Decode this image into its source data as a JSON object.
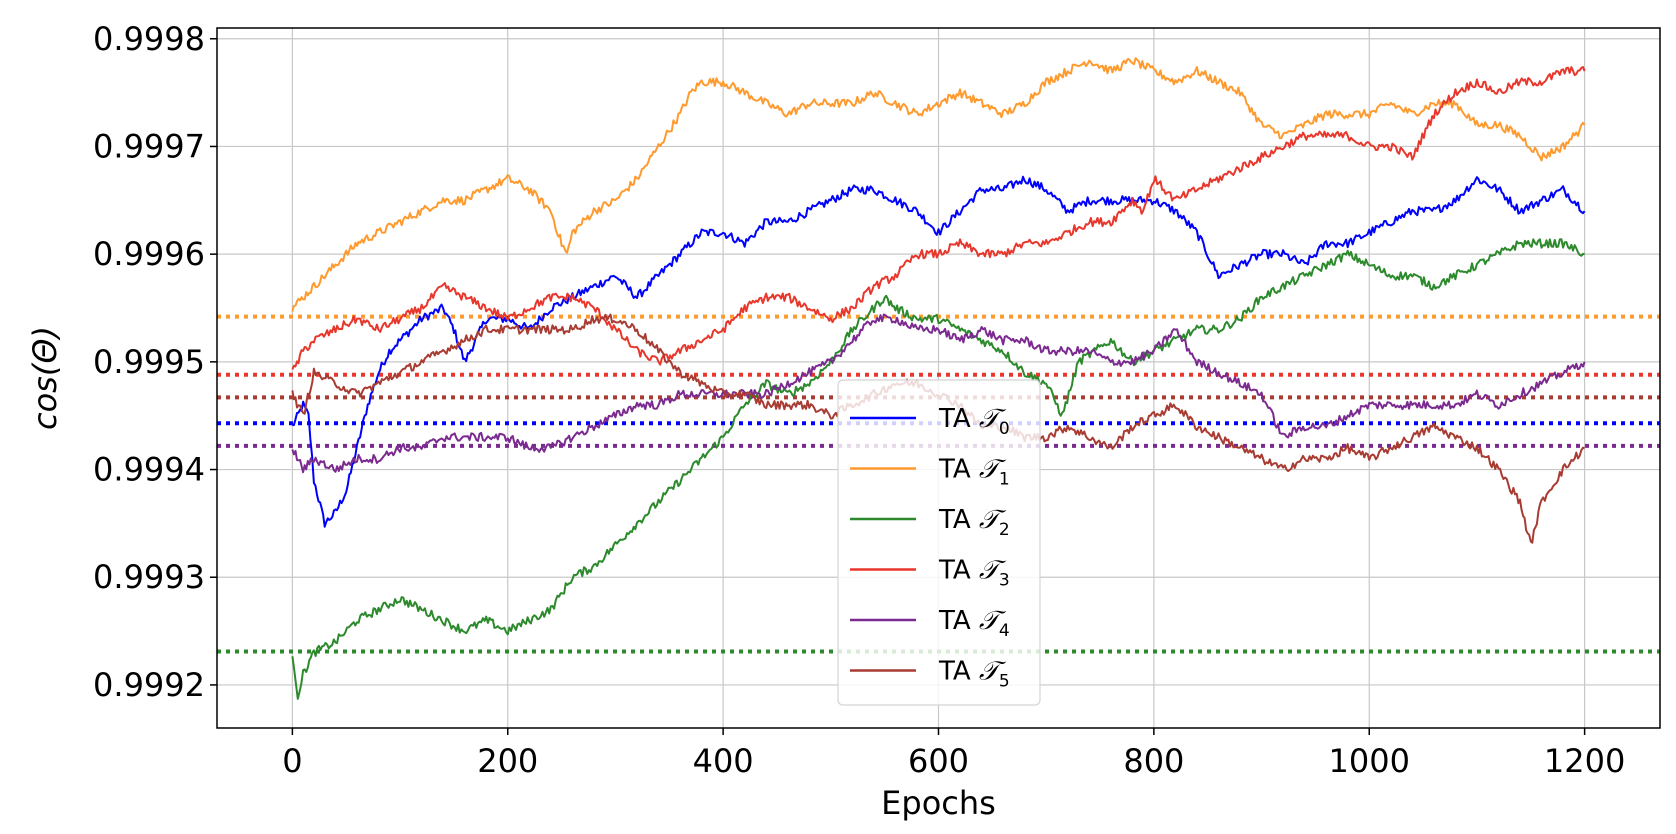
{
  "chart_data": {
    "type": "line",
    "xlabel": "Epochs",
    "ylabel": "cos(Θ)",
    "xlim": [
      -70,
      1270
    ],
    "ylim": [
      0.99916,
      0.99981
    ],
    "xticks": [
      0,
      200,
      400,
      600,
      800,
      1000,
      1200
    ],
    "yticks": [
      0.9992,
      0.9993,
      0.9994,
      0.9995,
      0.9996,
      0.9997,
      0.9998
    ],
    "ytick_labels": [
      "0.9992",
      "0.9993",
      "0.9994",
      "0.9995",
      "0.9996",
      "0.9997",
      "0.9998"
    ],
    "grid": true,
    "legend_position": "lower-center",
    "series": [
      {
        "name": "TA 𝒯0",
        "prefix": "TA",
        "symbol": "𝒯",
        "sub": "0",
        "color": "#0000ff",
        "x": [
          0,
          10,
          15,
          20,
          30,
          40,
          50,
          60,
          70,
          80,
          90,
          100,
          120,
          140,
          150,
          160,
          170,
          180,
          200,
          220,
          240,
          260,
          280,
          300,
          320,
          340,
          360,
          380,
          400,
          420,
          440,
          460,
          480,
          500,
          520,
          540,
          560,
          580,
          600,
          620,
          640,
          660,
          680,
          700,
          720,
          740,
          760,
          780,
          800,
          820,
          840,
          860,
          880,
          900,
          920,
          940,
          960,
          980,
          1000,
          1020,
          1040,
          1060,
          1080,
          1100,
          1120,
          1140,
          1160,
          1180,
          1200
        ],
        "values": [
          0.99944,
          0.99946,
          0.99945,
          0.99939,
          0.99935,
          0.99936,
          0.99938,
          0.99942,
          0.99946,
          0.99949,
          0.99951,
          0.99952,
          0.99954,
          0.99955,
          0.99953,
          0.9995,
          0.99952,
          0.99954,
          0.99954,
          0.99953,
          0.99955,
          0.99956,
          0.99957,
          0.99958,
          0.99956,
          0.99958,
          0.9996,
          0.99962,
          0.99962,
          0.99961,
          0.99963,
          0.99963,
          0.99964,
          0.99965,
          0.99966,
          0.99966,
          0.99965,
          0.99964,
          0.99962,
          0.99964,
          0.99966,
          0.99966,
          0.99967,
          0.99966,
          0.99964,
          0.99965,
          0.99965,
          0.99965,
          0.99965,
          0.99964,
          0.99962,
          0.99958,
          0.99959,
          0.9996,
          0.9996,
          0.99959,
          0.99961,
          0.99961,
          0.99962,
          0.99963,
          0.99964,
          0.99964,
          0.99965,
          0.99967,
          0.99966,
          0.99964,
          0.99965,
          0.99966,
          0.99964
        ]
      },
      {
        "name": "TA 𝒯1",
        "prefix": "TA",
        "symbol": "𝒯",
        "sub": "1",
        "color": "#ff9a2e",
        "x": [
          0,
          10,
          20,
          30,
          40,
          50,
          60,
          80,
          100,
          120,
          140,
          160,
          180,
          200,
          220,
          240,
          250,
          255,
          260,
          270,
          280,
          300,
          320,
          340,
          360,
          370,
          380,
          400,
          420,
          440,
          460,
          480,
          500,
          520,
          540,
          560,
          580,
          600,
          620,
          640,
          660,
          680,
          700,
          720,
          740,
          760,
          780,
          800,
          820,
          840,
          860,
          880,
          900,
          920,
          940,
          960,
          980,
          1000,
          1020,
          1040,
          1060,
          1080,
          1100,
          1120,
          1140,
          1160,
          1180,
          1200
        ],
        "values": [
          0.99955,
          0.99956,
          0.99957,
          0.99958,
          0.99959,
          0.9996,
          0.99961,
          0.99962,
          0.99963,
          0.99964,
          0.99965,
          0.99965,
          0.99966,
          0.99967,
          0.99966,
          0.99964,
          0.99961,
          0.9996,
          0.99962,
          0.99963,
          0.99964,
          0.99965,
          0.99967,
          0.9997,
          0.99973,
          0.99975,
          0.99976,
          0.99976,
          0.99975,
          0.99974,
          0.99973,
          0.99974,
          0.99974,
          0.99974,
          0.99975,
          0.99974,
          0.99973,
          0.99974,
          0.99975,
          0.99974,
          0.99973,
          0.99974,
          0.99976,
          0.99977,
          0.99978,
          0.99977,
          0.99978,
          0.99977,
          0.99976,
          0.99977,
          0.99976,
          0.99975,
          0.99972,
          0.99971,
          0.99972,
          0.99973,
          0.99973,
          0.99973,
          0.99974,
          0.99973,
          0.99974,
          0.99974,
          0.99972,
          0.99972,
          0.99971,
          0.99969,
          0.9997,
          0.99972
        ]
      },
      {
        "name": "TA 𝒯2",
        "prefix": "TA",
        "symbol": "𝒯",
        "sub": "2",
        "color": "#2c8a2c",
        "x": [
          0,
          5,
          10,
          20,
          40,
          60,
          80,
          100,
          120,
          140,
          160,
          180,
          200,
          220,
          240,
          260,
          280,
          300,
          320,
          340,
          360,
          380,
          400,
          420,
          440,
          460,
          480,
          500,
          520,
          540,
          550,
          560,
          580,
          600,
          620,
          640,
          660,
          680,
          700,
          715,
          730,
          760,
          780,
          800,
          820,
          840,
          860,
          880,
          900,
          920,
          940,
          960,
          980,
          1000,
          1020,
          1040,
          1060,
          1080,
          1100,
          1120,
          1140,
          1160,
          1180,
          1200
        ],
        "values": [
          0.99923,
          0.99919,
          0.99921,
          0.99923,
          0.99924,
          0.99926,
          0.99927,
          0.99928,
          0.99927,
          0.99926,
          0.99925,
          0.99926,
          0.99925,
          0.99926,
          0.99927,
          0.9993,
          0.99931,
          0.99933,
          0.99935,
          0.99937,
          0.99939,
          0.99941,
          0.99943,
          0.99946,
          0.99948,
          0.99947,
          0.99948,
          0.9995,
          0.99953,
          0.99955,
          0.99956,
          0.99955,
          0.99954,
          0.99954,
          0.99953,
          0.99952,
          0.99951,
          0.99949,
          0.99948,
          0.99945,
          0.9995,
          0.99952,
          0.9995,
          0.99951,
          0.99952,
          0.99953,
          0.99953,
          0.99954,
          0.99956,
          0.99957,
          0.99958,
          0.99959,
          0.9996,
          0.99959,
          0.99958,
          0.99958,
          0.99957,
          0.99958,
          0.99959,
          0.9996,
          0.99961,
          0.99961,
          0.99961,
          0.9996
        ]
      },
      {
        "name": "TA 𝒯3",
        "prefix": "TA",
        "symbol": "𝒯",
        "sub": "3",
        "color": "#e8372c",
        "x": [
          0,
          10,
          20,
          40,
          60,
          80,
          100,
          120,
          140,
          160,
          180,
          200,
          220,
          240,
          260,
          280,
          300,
          320,
          340,
          360,
          380,
          400,
          420,
          440,
          460,
          480,
          500,
          520,
          540,
          560,
          580,
          600,
          620,
          640,
          660,
          680,
          700,
          720,
          740,
          760,
          780,
          790,
          800,
          820,
          840,
          860,
          880,
          900,
          920,
          940,
          960,
          980,
          1000,
          1020,
          1040,
          1060,
          1080,
          1100,
          1120,
          1140,
          1160,
          1180,
          1200
        ],
        "values": [
          0.99949,
          0.99951,
          0.99952,
          0.99953,
          0.99954,
          0.99953,
          0.99954,
          0.99955,
          0.99957,
          0.99956,
          0.99955,
          0.99954,
          0.99955,
          0.99956,
          0.99956,
          0.99955,
          0.99953,
          0.99951,
          0.9995,
          0.99951,
          0.99952,
          0.99953,
          0.99955,
          0.99956,
          0.99956,
          0.99955,
          0.99954,
          0.99955,
          0.99957,
          0.99958,
          0.9996,
          0.9996,
          0.99961,
          0.9996,
          0.9996,
          0.99961,
          0.99961,
          0.99962,
          0.99963,
          0.99963,
          0.99965,
          0.99964,
          0.99967,
          0.99965,
          0.99966,
          0.99967,
          0.99968,
          0.99969,
          0.9997,
          0.99971,
          0.99971,
          0.99971,
          0.9997,
          0.9997,
          0.99969,
          0.99973,
          0.99975,
          0.99976,
          0.99975,
          0.99976,
          0.99976,
          0.99977,
          0.99977
        ]
      },
      {
        "name": "TA 𝒯4",
        "prefix": "TA",
        "symbol": "𝒯",
        "sub": "4",
        "color": "#7b2a8f",
        "x": [
          0,
          10,
          20,
          40,
          60,
          80,
          100,
          120,
          140,
          160,
          180,
          200,
          220,
          240,
          260,
          280,
          300,
          320,
          340,
          360,
          380,
          400,
          420,
          440,
          460,
          480,
          500,
          520,
          540,
          560,
          580,
          600,
          620,
          640,
          660,
          680,
          700,
          720,
          740,
          760,
          780,
          800,
          820,
          840,
          860,
          880,
          900,
          920,
          940,
          960,
          980,
          1000,
          1020,
          1040,
          1060,
          1080,
          1100,
          1120,
          1140,
          1160,
          1180,
          1200
        ],
        "values": [
          0.99942,
          0.9994,
          0.99941,
          0.9994,
          0.99941,
          0.99941,
          0.99942,
          0.99942,
          0.99943,
          0.99943,
          0.99943,
          0.99943,
          0.99942,
          0.99942,
          0.99943,
          0.99944,
          0.99945,
          0.99946,
          0.99946,
          0.99947,
          0.99947,
          0.99947,
          0.99947,
          0.99947,
          0.99948,
          0.99949,
          0.9995,
          0.99952,
          0.99954,
          0.99954,
          0.99953,
          0.99953,
          0.99952,
          0.99953,
          0.99952,
          0.99952,
          0.99951,
          0.99951,
          0.99951,
          0.9995,
          0.9995,
          0.99951,
          0.99953,
          0.9995,
          0.99949,
          0.99948,
          0.99947,
          0.99943,
          0.99944,
          0.99944,
          0.99945,
          0.99946,
          0.99946,
          0.99946,
          0.99946,
          0.99946,
          0.99947,
          0.99946,
          0.99947,
          0.99948,
          0.99949,
          0.9995
        ]
      },
      {
        "name": "TA 𝒯5",
        "prefix": "TA",
        "symbol": "𝒯",
        "sub": "5",
        "color": "#a83b32",
        "x": [
          0,
          10,
          20,
          40,
          60,
          80,
          100,
          120,
          140,
          160,
          180,
          200,
          220,
          240,
          260,
          280,
          300,
          320,
          340,
          360,
          380,
          400,
          420,
          440,
          460,
          480,
          500,
          520,
          540,
          560,
          580,
          600,
          620,
          640,
          660,
          680,
          700,
          720,
          740,
          760,
          780,
          800,
          820,
          840,
          860,
          880,
          900,
          920,
          940,
          960,
          980,
          1000,
          1020,
          1040,
          1060,
          1080,
          1100,
          1120,
          1140,
          1150,
          1160,
          1180,
          1200
        ],
        "values": [
          0.99947,
          0.99945,
          0.99949,
          0.99948,
          0.99947,
          0.99948,
          0.99949,
          0.9995,
          0.99951,
          0.99952,
          0.99953,
          0.99953,
          0.99953,
          0.99953,
          0.99953,
          0.99954,
          0.99954,
          0.99953,
          0.99951,
          0.99949,
          0.99948,
          0.99947,
          0.99947,
          0.99946,
          0.99946,
          0.99946,
          0.99945,
          0.99946,
          0.99947,
          0.99948,
          0.99948,
          0.99947,
          0.99946,
          0.99944,
          0.99944,
          0.99943,
          0.99943,
          0.99944,
          0.99943,
          0.99942,
          0.99944,
          0.99945,
          0.99946,
          0.99944,
          0.99943,
          0.99942,
          0.99941,
          0.9994,
          0.99941,
          0.99941,
          0.99942,
          0.99941,
          0.99942,
          0.99943,
          0.99944,
          0.99943,
          0.99942,
          0.9994,
          0.99937,
          0.99933,
          0.99937,
          0.9994,
          0.99942
        ]
      }
    ],
    "reference_lines": [
      {
        "series": "TA 𝒯1",
        "y": 0.999542,
        "color": "#ff9a2e",
        "style": "dotted"
      },
      {
        "series": "TA 𝒯3",
        "y": 0.999488,
        "color": "#e8372c",
        "style": "dotted"
      },
      {
        "series": "TA 𝒯5",
        "y": 0.999467,
        "color": "#a83b32",
        "style": "dotted"
      },
      {
        "series": "TA 𝒯0",
        "y": 0.999443,
        "color": "#0000ff",
        "style": "dotted"
      },
      {
        "series": "TA 𝒯4",
        "y": 0.999422,
        "color": "#7b2a8f",
        "style": "dotted"
      },
      {
        "series": "TA 𝒯2",
        "y": 0.999231,
        "color": "#2c8a2c",
        "style": "dotted"
      }
    ]
  }
}
